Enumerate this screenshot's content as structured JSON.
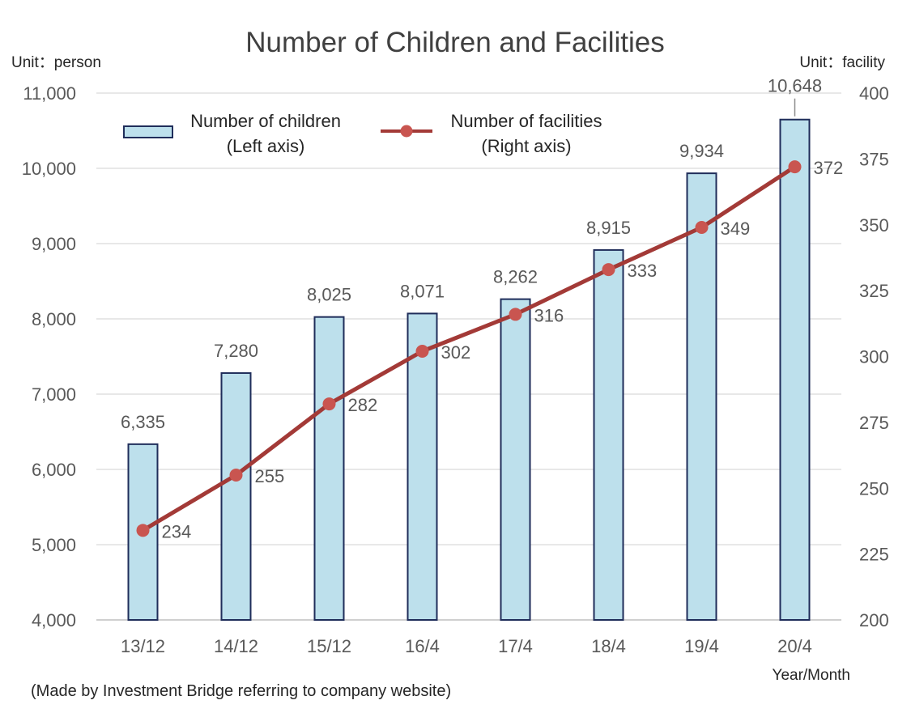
{
  "chart_data": {
    "type": "bar",
    "title": "Number of Children and Facilities",
    "left_unit": "Unit：person",
    "right_unit": "Unit：facility",
    "xlabel": "Year/Month",
    "note": "(Made by Investment Bridge referring to company website)",
    "categories": [
      "13/12",
      "14/12",
      "15/12",
      "16/4",
      "17/4",
      "18/4",
      "19/4",
      "20/4"
    ],
    "series": [
      {
        "name": "Number of children",
        "legend_sub": "(Left axis)",
        "type": "bar",
        "axis": "left",
        "color": "#BDE0EC",
        "edge_color": "#1F2D5A",
        "values": [
          6335,
          7280,
          8025,
          8071,
          8262,
          8915,
          9934,
          10648
        ],
        "labels": [
          "6,335",
          "7,280",
          "8,025",
          "8,071",
          "8,262",
          "8,915",
          "9,934",
          "10,648"
        ]
      },
      {
        "name": "Number of facilities",
        "legend_sub": "(Right axis)",
        "type": "line",
        "axis": "right",
        "color": "#A33A37",
        "values": [
          234,
          255,
          282,
          302,
          316,
          333,
          349,
          372
        ],
        "labels": [
          "234",
          "255",
          "282",
          "302",
          "316",
          "333",
          "349",
          "372"
        ]
      }
    ],
    "y_left": {
      "min": 4000,
      "max": 11000,
      "ticks": [
        4000,
        5000,
        6000,
        7000,
        8000,
        9000,
        10000,
        11000
      ],
      "tick_labels": [
        "4,000",
        "5,000",
        "6,000",
        "7,000",
        "8,000",
        "9,000",
        "10,000",
        "11,000"
      ]
    },
    "y_right": {
      "min": 200,
      "max": 400,
      "ticks": [
        200,
        225,
        250,
        275,
        300,
        325,
        350,
        375,
        400
      ],
      "tick_labels": [
        "200",
        "225",
        "250",
        "275",
        "300",
        "325",
        "350",
        "375",
        "400"
      ]
    },
    "grid": true,
    "legend_position": "top-left"
  }
}
